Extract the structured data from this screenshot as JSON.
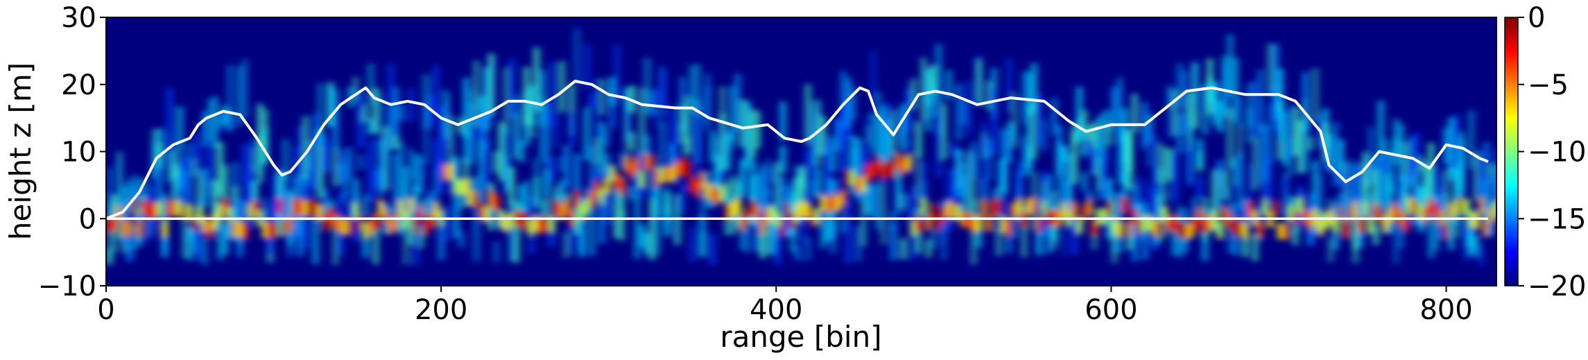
{
  "chart_data": {
    "type": "heatmap",
    "title": "",
    "xlabel": "range [bin]",
    "ylabel": "height z [m]",
    "xlim": [
      0,
      830
    ],
    "ylim": [
      -10,
      30
    ],
    "xticks": [
      0,
      200,
      400,
      600,
      800
    ],
    "yticks": [
      -10,
      0,
      10,
      20,
      30
    ],
    "colormap": "jet",
    "colorbar": {
      "range": [
        -20,
        0
      ],
      "ticks": [
        -20,
        -15,
        -10,
        -5,
        0
      ]
    },
    "background_value": -20,
    "grid": false,
    "overlays": [
      {
        "color": "#ffffff",
        "x": [
          0,
          10,
          20,
          30,
          40,
          50,
          55,
          60,
          70,
          80,
          90,
          100,
          105,
          110,
          120,
          130,
          140,
          155,
          160,
          170,
          180,
          190,
          200,
          205,
          210,
          220,
          230,
          240,
          250,
          260,
          270,
          280,
          290,
          300,
          310,
          320,
          340,
          350,
          360,
          380,
          395,
          405,
          415,
          420,
          430,
          440,
          450,
          455,
          460,
          470,
          475,
          485,
          495,
          505,
          520,
          540,
          560,
          575,
          585,
          600,
          620,
          630,
          645,
          660,
          680,
          700,
          710,
          720,
          725,
          730,
          740,
          750,
          760,
          780,
          790,
          800,
          810,
          820,
          825
        ],
        "y": [
          0,
          1,
          4,
          9,
          11,
          12,
          14,
          15,
          16,
          15.5,
          12,
          8,
          6.5,
          7,
          10,
          14,
          17,
          19.5,
          18,
          17,
          17.5,
          17,
          15,
          14.5,
          14,
          15,
          16,
          17.5,
          17.5,
          17,
          18.5,
          20.5,
          20,
          18.5,
          18,
          17,
          16.5,
          16.5,
          15,
          13.5,
          14,
          12,
          11.5,
          12,
          14,
          17,
          19.5,
          19,
          15.5,
          12.5,
          14.5,
          18.5,
          19,
          18.5,
          17,
          18,
          17.5,
          14.5,
          13,
          14,
          14,
          16,
          19,
          19.5,
          18.5,
          18.5,
          17.5,
          14.5,
          13,
          8,
          5.5,
          7,
          10,
          9,
          7.5,
          11,
          10.5,
          9,
          8.5
        ]
      },
      {
        "color": "#ffffff",
        "x": [
          0,
          825
        ],
        "y": [
          0,
          0
        ]
      }
    ],
    "annotations": []
  }
}
